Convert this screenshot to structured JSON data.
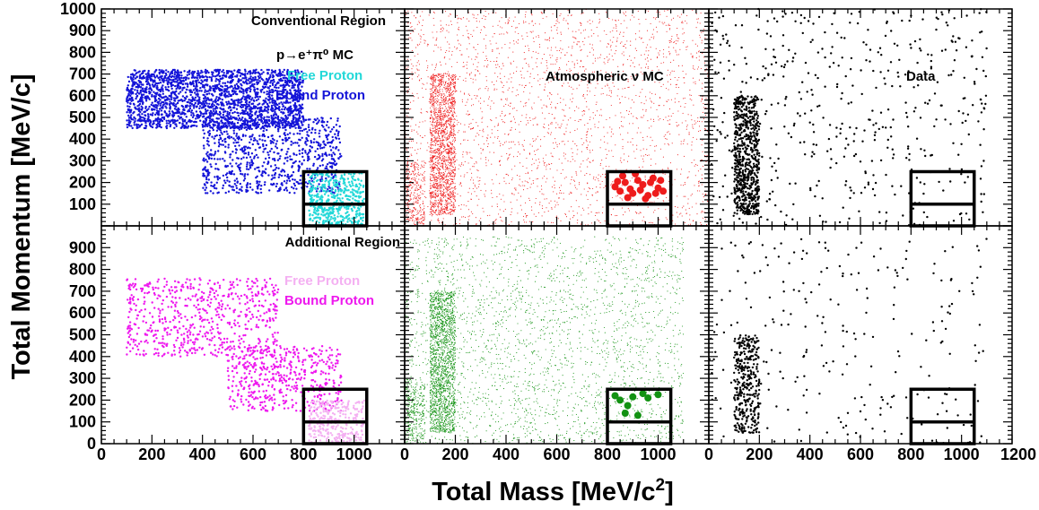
{
  "chart_data": {
    "type": "scatter",
    "xlabel": "Total Mass [MeV/c",
    "xlabel_sup": "2",
    "xlabel_end": "]",
    "ylabel": "Total Momentum [MeV/c]",
    "xlim": [
      0,
      1200
    ],
    "ylim": [
      0,
      1000
    ],
    "x_ticks": [
      "0",
      "200",
      "400",
      "600",
      "800",
      "1000"
    ],
    "x_ticks_last_column": [
      "0",
      "200",
      "400",
      "600",
      "800",
      "1000",
      "1200"
    ],
    "y_ticks_top_row": [
      "100",
      "200",
      "300",
      "400",
      "500",
      "600",
      "700",
      "800",
      "900",
      "1000"
    ],
    "y_ticks_bottom_row": [
      "0",
      "100",
      "200",
      "300",
      "400",
      "500",
      "600",
      "700",
      "800",
      "900"
    ],
    "signal_box": {
      "x": [
        800,
        1050
      ],
      "y": [
        0,
        250
      ],
      "divider_y": 100
    },
    "rows": [
      {
        "region_label": "Conventional Region"
      },
      {
        "region_label": "Additional Region"
      }
    ],
    "columns": [
      {
        "label": "p→e⁺π⁰ MC"
      },
      {
        "label": "Atmospheric ν MC"
      },
      {
        "label": "Data"
      }
    ],
    "legend_top": [
      {
        "name": "Free Proton",
        "color": "#22d8d8"
      },
      {
        "name": "Bound Proton",
        "color": "#1414d8"
      }
    ],
    "legend_bottom": [
      {
        "name": "Free Proton",
        "color": "#f4b0f2"
      },
      {
        "name": "Bound Proton",
        "color": "#ee18ee"
      }
    ],
    "colors": {
      "top_bound": "#1414d8",
      "top_free": "#22d8d8",
      "bottom_bound": "#ee18ee",
      "bottom_free": "#f4b0f2",
      "atm_top": "#ee1c1c",
      "atm_bottom": "#129212",
      "data": "#000000"
    },
    "series": [
      {
        "panel": "top-left",
        "name": "Bound Proton",
        "color": "#1414d8",
        "regions": [
          {
            "x0": 100,
            "x1": 800,
            "y0": 450,
            "y1": 720,
            "n": 2200
          },
          {
            "x0": 400,
            "x1": 950,
            "y0": 150,
            "y1": 500,
            "n": 900
          }
        ]
      },
      {
        "panel": "top-left",
        "name": "Free Proton",
        "color": "#22d8d8",
        "regions": [
          {
            "x0": 820,
            "x1": 1040,
            "y0": 0,
            "y1": 250,
            "n": 500
          }
        ]
      },
      {
        "panel": "top-middle",
        "name": "Atmospheric ν MC",
        "color": "#ee1c1c",
        "regions": [
          {
            "x0": 0,
            "x1": 1200,
            "y0": 0,
            "y1": 1000,
            "n": 2500
          },
          {
            "x0": 100,
            "x1": 200,
            "y0": 50,
            "y1": 700,
            "n": 1800
          },
          {
            "x0": 0,
            "x1": 80,
            "y0": 0,
            "y1": 300,
            "n": 300
          }
        ],
        "signal_events": [
          [
            830,
            180
          ],
          [
            850,
            160
          ],
          [
            870,
            200
          ],
          [
            890,
            170
          ],
          [
            900,
            150
          ],
          [
            920,
            210
          ],
          [
            940,
            190
          ],
          [
            960,
            140
          ],
          [
            980,
            220
          ],
          [
            1000,
            175
          ],
          [
            1020,
            160
          ],
          [
            860,
            230
          ],
          [
            880,
            130
          ],
          [
            910,
            240
          ],
          [
            950,
            125
          ],
          [
            970,
            200
          ],
          [
            990,
            150
          ],
          [
            1010,
            210
          ],
          [
            840,
            205
          ],
          [
            930,
            165
          ]
        ]
      },
      {
        "panel": "top-right",
        "name": "Data",
        "color": "#000000",
        "regions": [
          {
            "x0": 100,
            "x1": 200,
            "y0": 50,
            "y1": 600,
            "n": 700
          },
          {
            "x0": 0,
            "x1": 1100,
            "y0": 0,
            "y1": 1000,
            "n": 500
          }
        ]
      },
      {
        "panel": "bottom-left",
        "name": "Bound Proton",
        "color": "#ee18ee",
        "regions": [
          {
            "x0": 100,
            "x1": 700,
            "y0": 400,
            "y1": 760,
            "n": 650
          },
          {
            "x0": 500,
            "x1": 950,
            "y0": 150,
            "y1": 450,
            "n": 500
          }
        ]
      },
      {
        "panel": "bottom-left",
        "name": "Free Proton",
        "color": "#f4b0f2",
        "regions": [
          {
            "x0": 820,
            "x1": 1040,
            "y0": 0,
            "y1": 200,
            "n": 300
          }
        ]
      },
      {
        "panel": "bottom-middle",
        "name": "Atmospheric ν MC",
        "color": "#129212",
        "regions": [
          {
            "x0": 0,
            "x1": 1100,
            "y0": 0,
            "y1": 950,
            "n": 2500
          },
          {
            "x0": 100,
            "x1": 200,
            "y0": 50,
            "y1": 700,
            "n": 1800
          },
          {
            "x0": 0,
            "x1": 80,
            "y0": 0,
            "y1": 300,
            "n": 300
          }
        ],
        "signal_events": [
          [
            830,
            220
          ],
          [
            850,
            200
          ],
          [
            870,
            140
          ],
          [
            900,
            215
          ],
          [
            940,
            230
          ],
          [
            960,
            210
          ],
          [
            1000,
            225
          ],
          [
            880,
            175
          ],
          [
            920,
            130
          ]
        ]
      },
      {
        "panel": "bottom-right",
        "name": "Data",
        "color": "#000000",
        "regions": [
          {
            "x0": 100,
            "x1": 200,
            "y0": 50,
            "y1": 500,
            "n": 350
          },
          {
            "x0": 0,
            "x1": 1100,
            "y0": 0,
            "y1": 950,
            "n": 250
          }
        ]
      }
    ]
  }
}
